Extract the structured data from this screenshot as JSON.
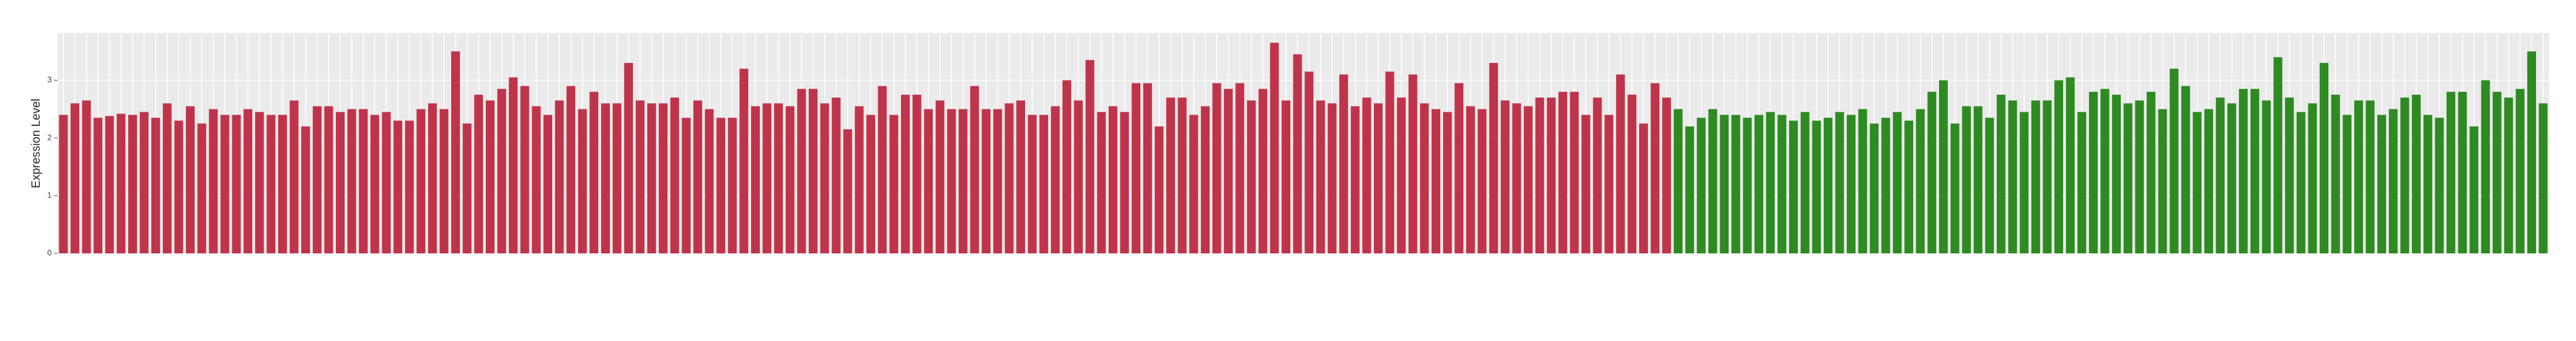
{
  "chart_data": {
    "type": "bar",
    "y_label": "Expression Level",
    "categories": [
      null,
      null,
      null,
      null,
      null,
      null,
      null,
      null,
      null,
      null,
      null,
      null,
      null,
      null,
      null,
      null,
      null,
      null,
      null,
      null,
      null,
      null,
      null,
      null,
      null,
      null,
      null,
      null,
      null,
      null,
      null,
      null,
      null,
      null,
      null,
      null,
      null,
      null,
      null,
      null,
      null,
      null,
      null,
      null,
      null,
      null,
      null,
      null,
      null,
      null,
      null,
      null,
      null,
      null,
      null,
      null,
      null,
      null,
      null,
      null,
      null,
      null,
      null,
      null,
      null,
      null,
      null,
      null,
      null,
      null,
      null,
      null,
      null,
      null,
      null,
      null,
      null,
      null,
      null,
      null,
      null,
      null,
      null,
      null,
      null,
      null,
      null,
      null,
      null,
      null,
      null,
      null,
      null,
      null,
      null,
      null,
      null,
      null,
      null,
      null,
      null,
      null,
      null,
      null,
      null,
      null,
      null,
      null,
      null,
      null,
      null,
      null,
      null,
      null,
      null,
      null,
      null,
      null,
      null,
      null,
      null,
      null,
      null,
      null,
      null,
      null,
      null,
      null,
      null,
      null,
      null,
      null,
      null,
      null,
      null,
      null,
      null,
      null,
      null,
      null,
      null,
      null,
      null,
      null,
      null,
      null,
      null,
      null,
      null,
      null,
      null,
      null,
      null,
      null,
      null,
      null,
      null,
      null,
      null,
      null,
      null,
      null,
      null,
      null,
      null,
      null,
      null,
      null,
      null,
      null,
      null,
      null,
      null,
      null,
      null,
      null,
      null,
      null,
      null,
      null,
      null,
      null,
      null,
      null,
      null,
      null,
      null,
      null,
      null,
      null,
      null,
      null,
      null,
      null,
      null,
      null,
      null,
      null,
      null,
      null,
      null,
      null,
      null,
      null,
      null,
      null,
      null,
      null,
      null,
      null,
      null,
      null,
      null,
      null,
      null,
      null
    ],
    "series": [
      {
        "color": "#c0344a",
        "values": [
          2.4,
          2.6,
          2.65,
          2.35,
          2.38,
          2.42,
          2.4,
          2.45,
          2.35,
          2.6,
          2.3,
          2.55,
          2.25,
          2.5,
          2.4,
          2.4,
          2.5,
          2.45,
          2.4,
          2.4,
          2.65,
          2.2,
          2.55,
          2.55,
          2.45,
          2.5,
          2.5,
          2.4,
          2.45,
          2.3,
          2.3,
          2.5,
          2.6,
          2.5,
          3.5,
          2.25,
          2.75,
          2.65,
          2.85,
          3.05,
          2.9,
          2.55,
          2.4,
          2.65,
          2.9,
          2.5,
          2.8,
          2.6,
          2.6,
          3.3,
          2.65,
          2.6,
          2.6,
          2.7,
          2.35,
          2.65,
          2.5,
          2.35,
          2.35,
          3.2,
          2.55,
          2.6,
          2.6,
          2.55,
          2.85,
          2.85,
          2.6,
          2.7,
          2.15,
          2.55,
          2.4,
          2.9,
          2.4,
          2.75,
          2.75,
          2.5,
          2.65,
          2.5,
          2.5,
          2.9,
          2.5,
          2.5,
          2.6,
          2.65,
          2.4,
          2.4,
          2.55,
          3.0,
          2.65,
          3.35,
          2.45,
          2.55,
          2.45,
          2.95,
          2.95,
          2.2,
          2.7,
          2.7,
          2.4,
          2.55,
          2.95,
          2.85,
          2.95,
          2.65,
          2.85,
          3.65,
          2.65,
          3.45,
          3.15,
          2.65,
          2.6,
          3.1,
          2.55,
          2.7,
          2.6,
          3.15,
          2.7,
          3.1,
          2.6,
          2.5,
          2.45,
          2.95,
          2.55,
          2.5,
          3.3,
          2.65,
          2.6,
          2.55,
          2.7,
          2.7,
          2.8,
          2.8,
          2.4,
          2.7,
          2.4,
          3.1,
          2.75,
          2.25,
          2.95,
          2.7,
          null,
          null,
          null,
          null,
          null,
          null,
          null,
          null,
          null,
          null,
          null,
          null,
          null,
          null,
          null,
          null,
          null,
          null,
          null,
          null,
          null,
          null,
          null,
          null,
          null,
          null,
          null,
          null,
          null,
          null,
          null,
          null,
          null,
          null,
          null,
          null,
          null,
          null,
          null,
          null,
          null,
          null,
          null,
          null,
          null,
          null,
          null,
          null,
          null,
          null,
          null,
          null,
          null,
          null,
          null,
          null,
          null,
          null,
          null,
          null,
          null,
          null,
          null,
          null,
          null,
          null,
          null,
          null,
          null,
          null,
          null,
          null,
          null,
          null,
          null,
          null
        ]
      },
      {
        "color": "#2e8b22",
        "values": [
          null,
          null,
          null,
          null,
          null,
          null,
          null,
          null,
          null,
          null,
          null,
          null,
          null,
          null,
          null,
          null,
          null,
          null,
          null,
          null,
          null,
          null,
          null,
          null,
          null,
          null,
          null,
          null,
          null,
          null,
          null,
          null,
          null,
          null,
          null,
          null,
          null,
          null,
          null,
          null,
          null,
          null,
          null,
          null,
          null,
          null,
          null,
          null,
          null,
          null,
          null,
          null,
          null,
          null,
          null,
          null,
          null,
          null,
          null,
          null,
          null,
          null,
          null,
          null,
          null,
          null,
          null,
          null,
          null,
          null,
          null,
          null,
          null,
          null,
          null,
          null,
          null,
          null,
          null,
          null,
          null,
          null,
          null,
          null,
          null,
          null,
          null,
          null,
          null,
          null,
          null,
          null,
          null,
          null,
          null,
          null,
          null,
          null,
          null,
          null,
          null,
          null,
          null,
          null,
          null,
          null,
          null,
          null,
          null,
          null,
          null,
          null,
          null,
          null,
          null,
          null,
          null,
          null,
          null,
          null,
          null,
          null,
          null,
          null,
          null,
          null,
          null,
          null,
          null,
          null,
          null,
          null,
          null,
          null,
          null,
          null,
          null,
          null,
          null,
          null,
          2.5,
          2.2,
          2.35,
          2.5,
          2.4,
          2.4,
          2.35,
          2.4,
          2.45,
          2.4,
          2.3,
          2.45,
          2.3,
          2.35,
          2.45,
          2.4,
          2.5,
          2.25,
          2.35,
          2.45,
          2.3,
          2.5,
          2.8,
          3.0,
          2.25,
          2.55,
          2.55,
          2.35,
          2.75,
          2.65,
          2.45,
          2.65,
          2.65,
          3.0,
          3.05,
          2.45,
          2.8,
          2.85,
          2.75,
          2.6,
          2.65,
          2.8,
          2.5,
          3.2,
          2.9,
          2.45,
          2.5,
          2.7,
          2.6,
          2.85,
          2.85,
          2.65,
          3.4,
          2.7,
          2.45,
          2.6,
          3.3,
          2.75,
          2.4,
          2.65,
          2.65,
          2.4,
          2.5,
          2.7,
          2.75,
          2.4,
          2.35,
          2.8,
          2.8,
          2.2,
          3.0,
          2.8,
          2.7,
          2.85,
          3.5,
          2.6
        ]
      }
    ],
    "ylim": [
      0,
      3.82
    ],
    "yticks": [
      0,
      1,
      2,
      3
    ],
    "grid": true
  }
}
